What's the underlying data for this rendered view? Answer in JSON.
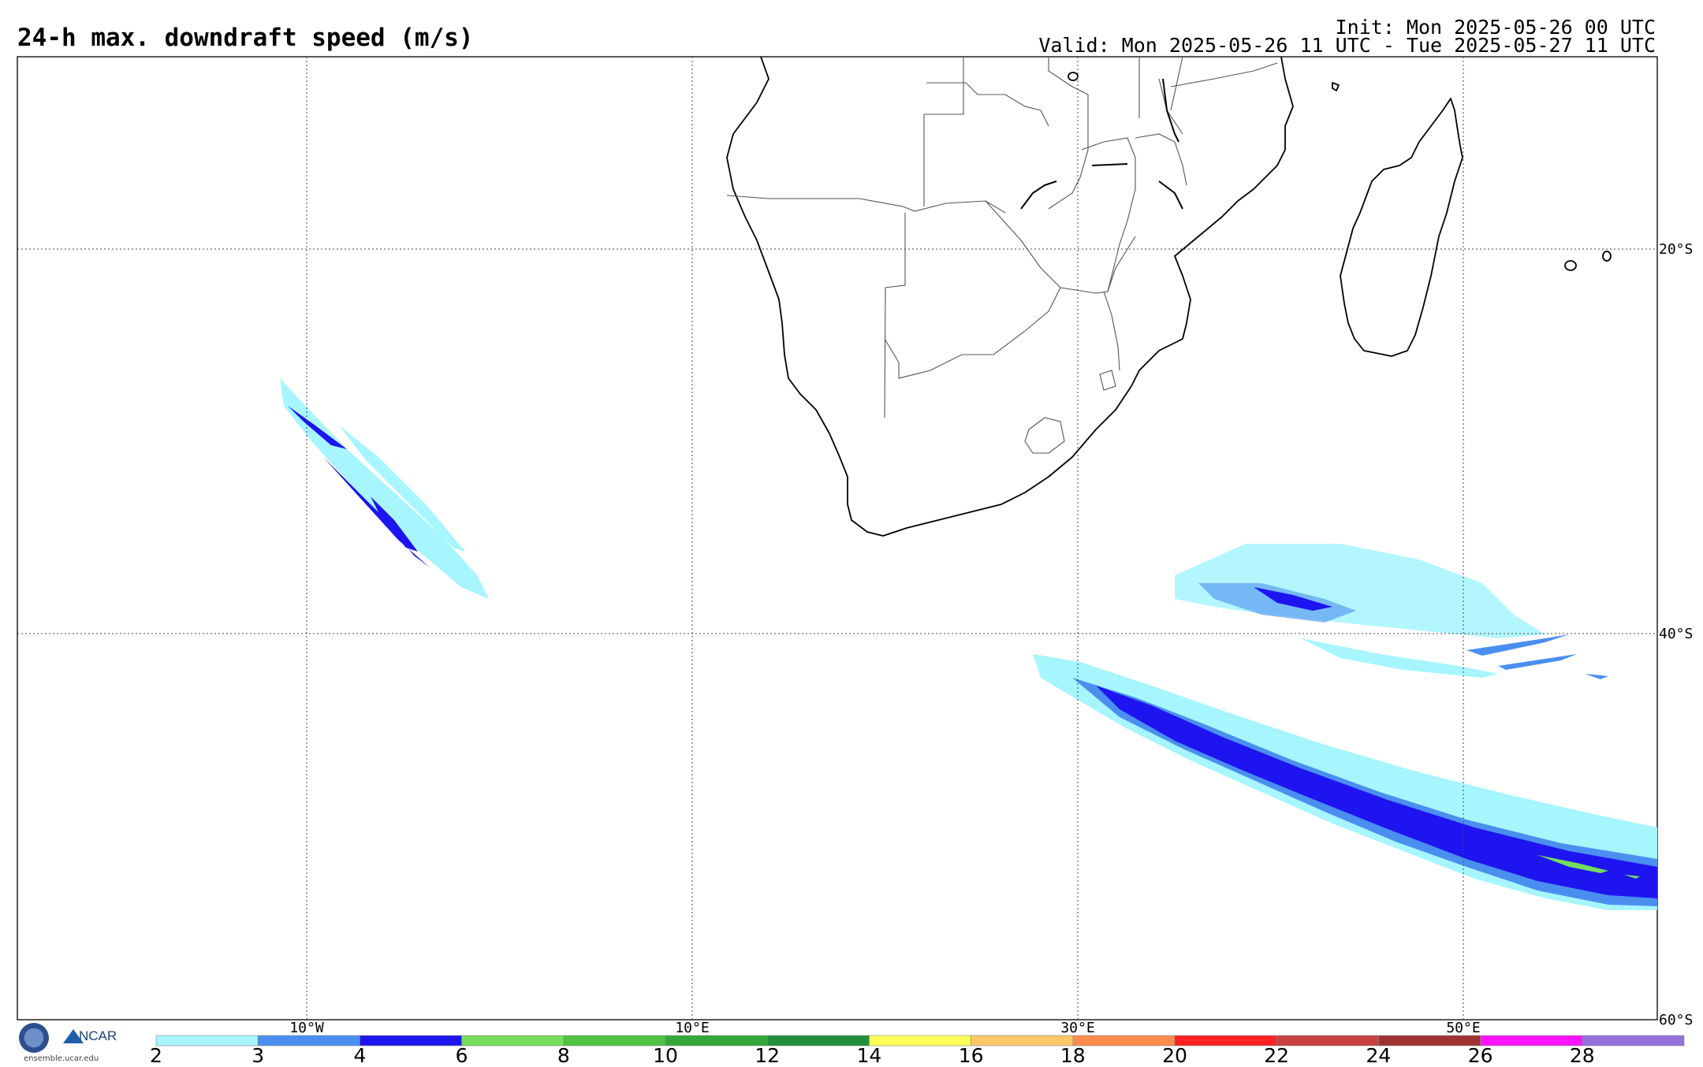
{
  "header": {
    "title": "24-h max. downdraft speed (m/s)",
    "init": "Init: Mon 2025-05-26 00 UTC",
    "valid": "Valid: Mon 2025-05-26 11 UTC - Tue 2025-05-27 11 UTC"
  },
  "map": {
    "lat_labels": [
      "20°S",
      "40°S",
      "60°S"
    ],
    "lon_labels": [
      "10°W",
      "10°E",
      "30°E",
      "50°E"
    ]
  },
  "colorbar": {
    "levels": [
      "2",
      "3",
      "4",
      "6",
      "8",
      "10",
      "12",
      "14",
      "16",
      "18",
      "20",
      "22",
      "24",
      "26",
      "28"
    ],
    "colors": [
      "#a6f5ff",
      "#4a8ff0",
      "#1e14f0",
      "#74dd5c",
      "#4fc244",
      "#33a838",
      "#248f3b",
      "#ffff5a",
      "#ffc766",
      "#ff8b4c",
      "#ff2222",
      "#c84040",
      "#a03232",
      "#ff14ff",
      "#9370db"
    ]
  },
  "logos": {
    "nsf": "NSF",
    "ncar": "NCAR",
    "url": "ensemble.ucar.edu"
  }
}
